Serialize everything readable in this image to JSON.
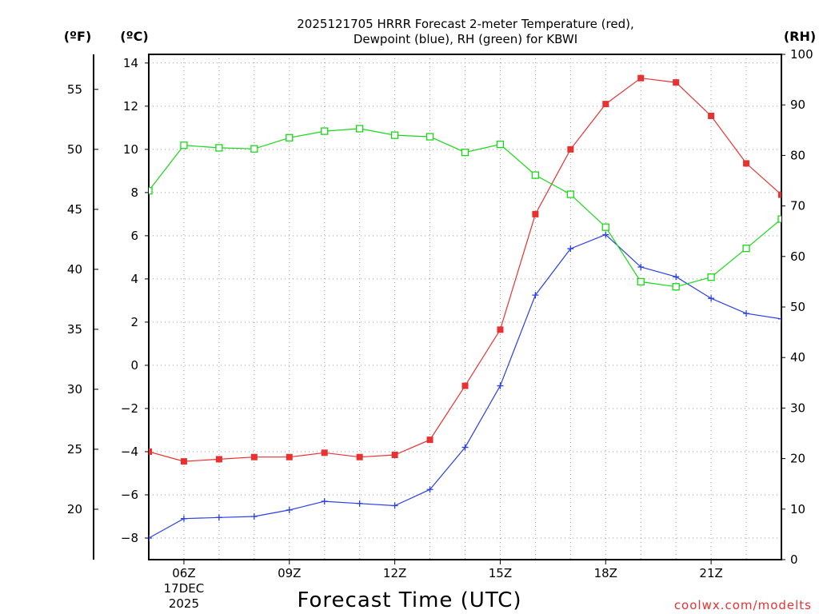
{
  "chart_data": {
    "type": "line",
    "title": [
      "2025121705 HRRR Forecast 2-meter Temperature (red),",
      "Dewpoint (blue), RH (green) for KBWI"
    ],
    "xlabel": "Forecast Time (UTC)",
    "x_hours": [
      5,
      6,
      7,
      8,
      9,
      10,
      11,
      12,
      13,
      14,
      15,
      16,
      17,
      18,
      19,
      20,
      21,
      22,
      23
    ],
    "x_ticks": [
      {
        "hour": 6,
        "label": "06Z",
        "sub1": "17DEC",
        "sub2": "2025"
      },
      {
        "hour": 9,
        "label": "09Z"
      },
      {
        "hour": 12,
        "label": "12Z"
      },
      {
        "hour": 15,
        "label": "15Z"
      },
      {
        "hour": 18,
        "label": "18Z"
      },
      {
        "hour": 21,
        "label": "21Z"
      }
    ],
    "xlim": [
      5,
      23
    ],
    "y_celsius": {
      "label": "(ºC)",
      "lim": [
        -9,
        14.4
      ],
      "ticks": [
        14,
        12,
        10,
        8,
        6,
        4,
        2,
        0,
        -2,
        -4,
        -6,
        -8
      ],
      "tick_labels": [
        "14",
        "12",
        "10",
        "8",
        "6",
        "4",
        "2",
        "0",
        "−2",
        "−4",
        "−6",
        "−8"
      ]
    },
    "y_fahrenheit": {
      "label": "(ºF)",
      "ticks": [
        55,
        50,
        45,
        40,
        35,
        30,
        25,
        20
      ]
    },
    "y_rh": {
      "label": "(RH)",
      "lim": [
        0,
        100
      ],
      "ticks": [
        100,
        90,
        80,
        70,
        60,
        50,
        40,
        30,
        20,
        10,
        0
      ]
    },
    "series": [
      {
        "name": "Temperature",
        "axis": "celsius",
        "color": "#e83232",
        "marker": "filled-square",
        "values": [
          -4.0,
          -4.45,
          -4.35,
          -4.25,
          -4.25,
          -4.05,
          -4.25,
          -4.15,
          -3.45,
          -0.95,
          1.65,
          7.0,
          10.0,
          12.1,
          13.3,
          13.1,
          11.55,
          9.35,
          7.9
        ]
      },
      {
        "name": "Dewpoint",
        "axis": "celsius",
        "color": "#2a3fe8",
        "marker": "plus",
        "values": [
          -8.0,
          -7.1,
          -7.05,
          -7.0,
          -6.7,
          -6.3,
          -6.4,
          -6.5,
          -5.75,
          -3.8,
          -0.95,
          3.25,
          5.4,
          6.05,
          4.55,
          4.1,
          3.1,
          2.4,
          2.15
        ]
      },
      {
        "name": "RH",
        "axis": "rh",
        "color": "#18d818",
        "marker": "open-square",
        "values": [
          73.0,
          82.0,
          81.5,
          81.3,
          83.5,
          84.8,
          85.3,
          84.0,
          83.7,
          80.6,
          82.2,
          76.1,
          72.3,
          65.8,
          55.0,
          54.0,
          55.9,
          61.6,
          67.4
        ]
      }
    ]
  },
  "credit": "coolwx.com/modelts"
}
